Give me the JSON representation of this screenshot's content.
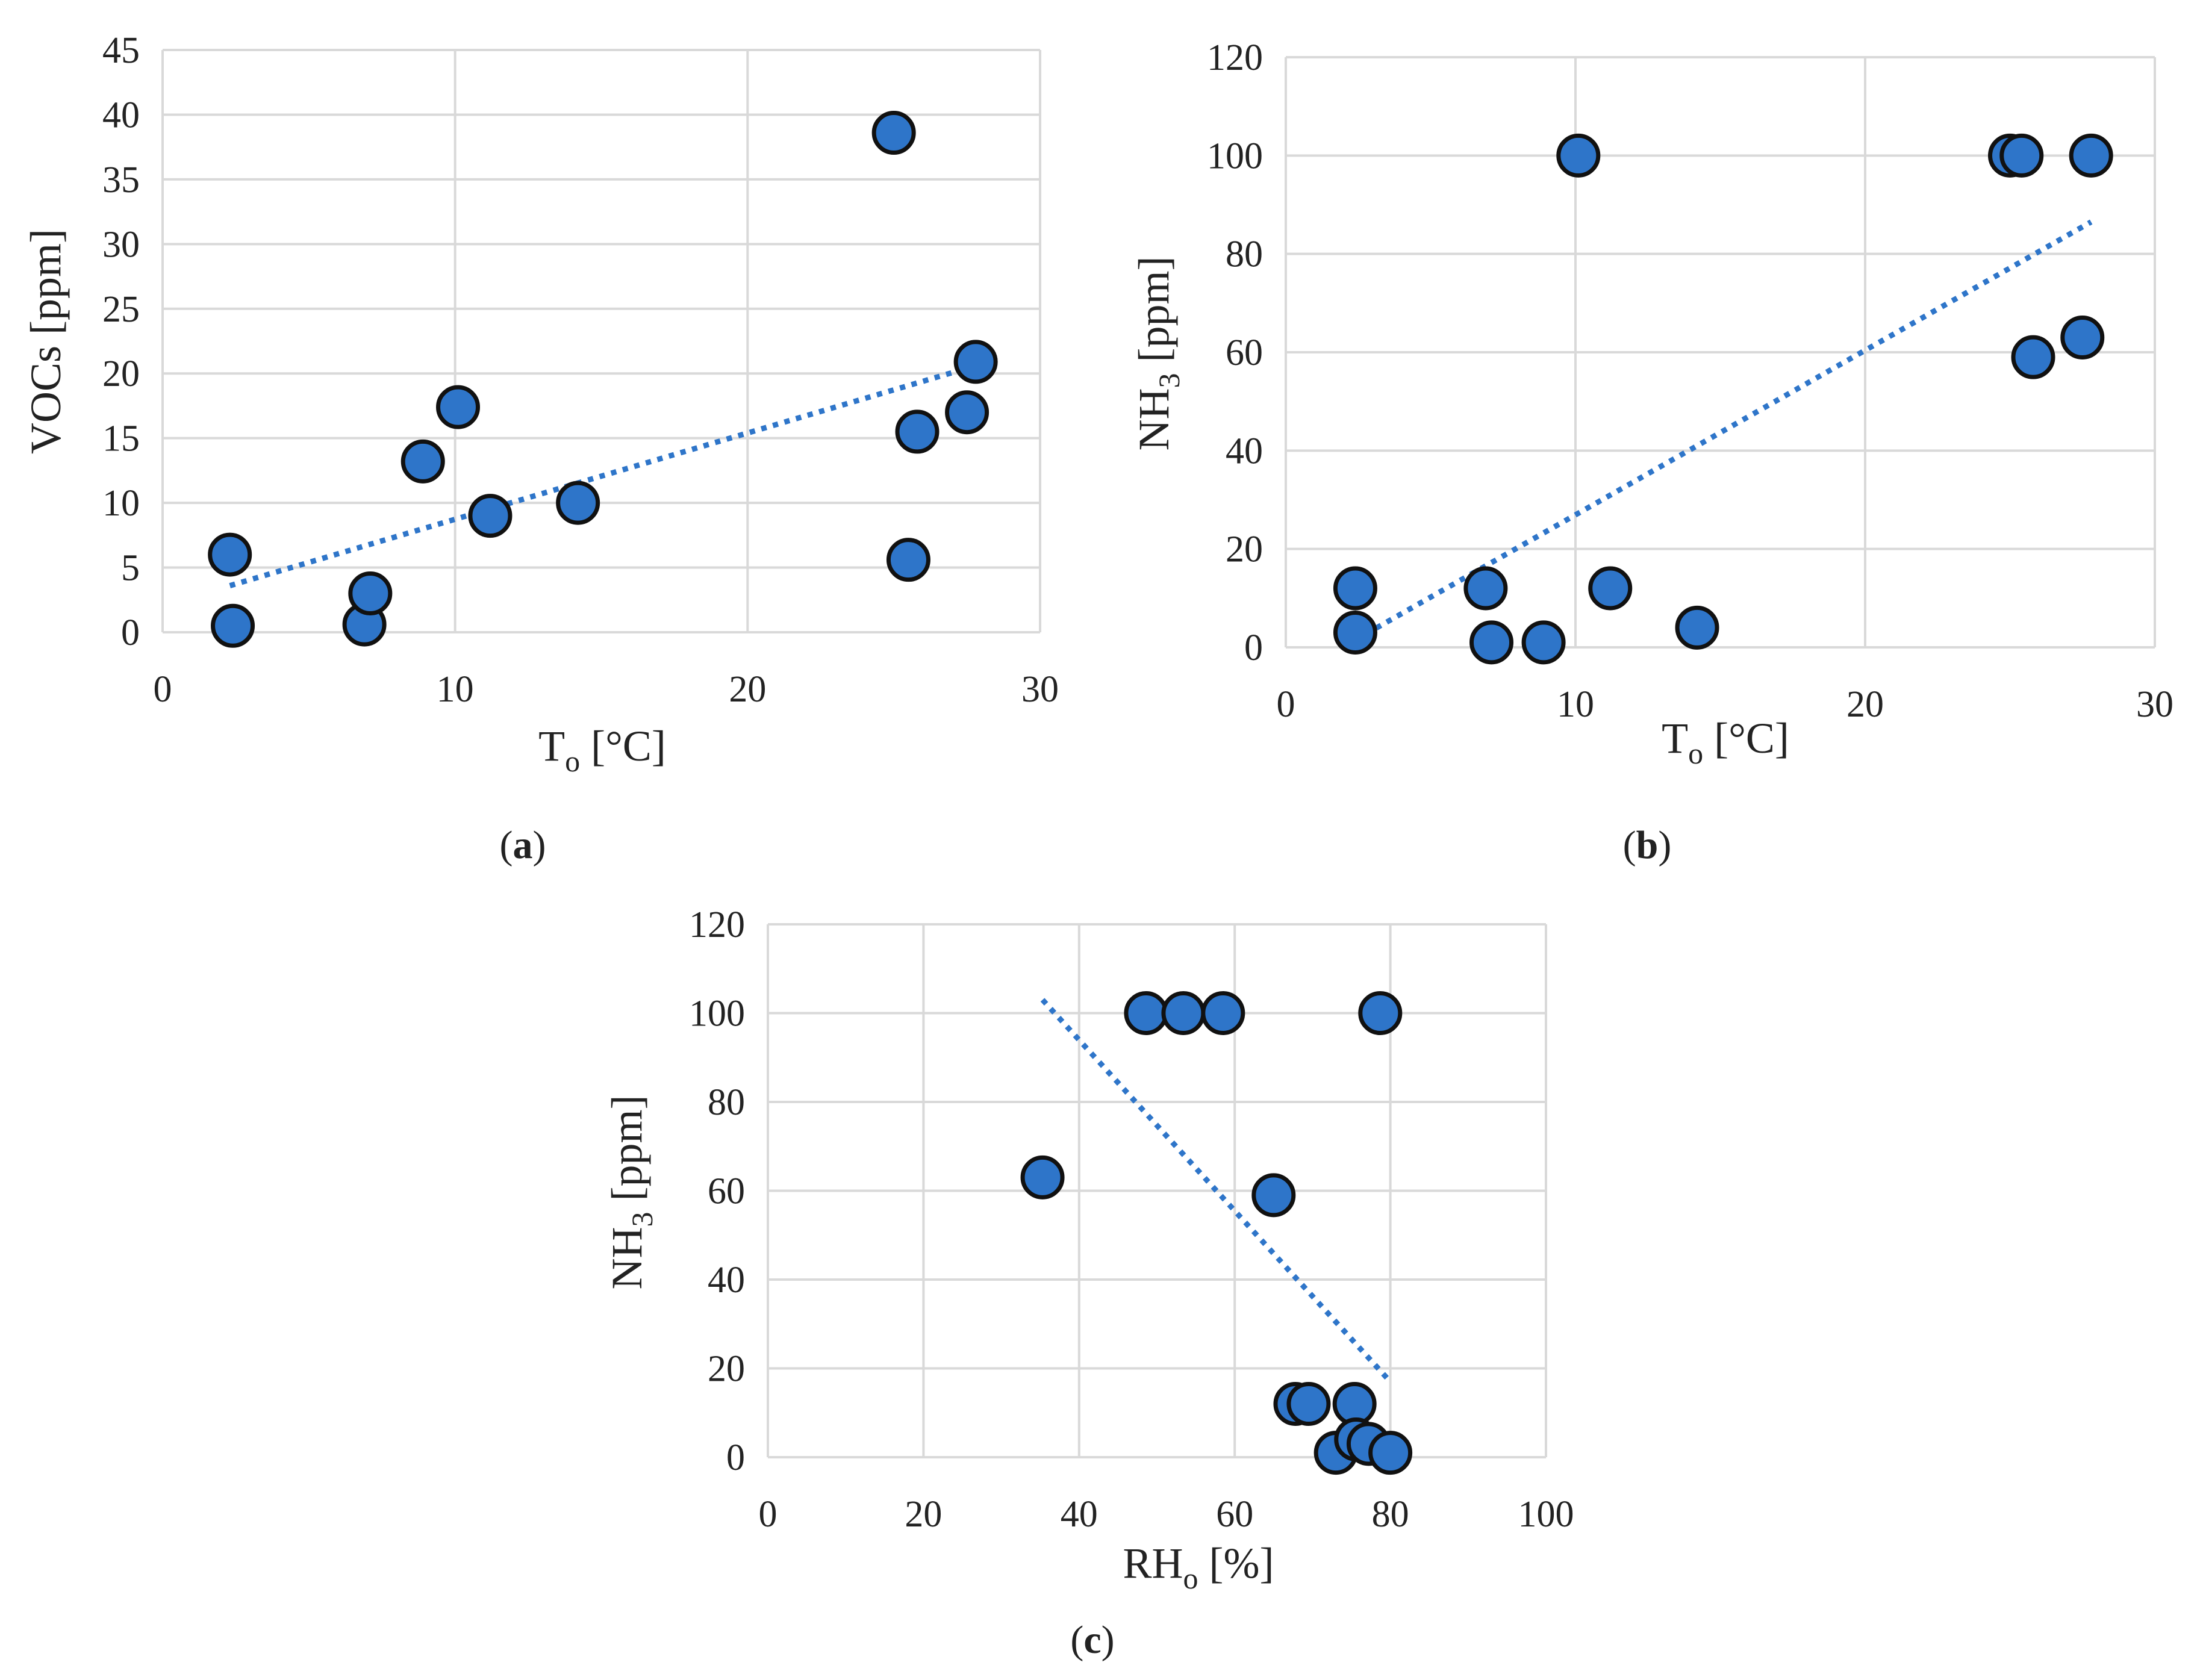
{
  "figure": {
    "colors": {
      "marker": "#2e75c9",
      "trend": "#2e75c9"
    }
  },
  "chart_data": [
    {
      "id": "a",
      "type": "scatter",
      "panel_label": "a",
      "xlabel": {
        "main": "T",
        "sub": "o",
        "rest": " [°C]"
      },
      "ylabel": {
        "main": "VOCs [ppm]",
        "sub": "",
        "rest": ""
      },
      "xlim": [
        0,
        30
      ],
      "ylim": [
        0,
        45
      ],
      "xticks": [
        0,
        10,
        20,
        30
      ],
      "yticks": [
        0,
        5,
        10,
        15,
        20,
        25,
        30,
        35,
        40,
        45
      ],
      "grid": true,
      "x": [
        2.3,
        2.4,
        6.9,
        7.1,
        8.9,
        10.1,
        11.2,
        14.2,
        25.0,
        25.5,
        25.8,
        27.5,
        27.8
      ],
      "y": [
        6.0,
        0.5,
        0.6,
        3.0,
        13.2,
        17.4,
        9.0,
        10.0,
        38.6,
        5.6,
        15.5,
        17.0,
        20.9
      ],
      "trendline": {
        "x": [
          2.3,
          27.8
        ],
        "y": [
          3.6,
          20.6
        ]
      }
    },
    {
      "id": "b",
      "type": "scatter",
      "panel_label": "b",
      "xlabel": {
        "main": "T",
        "sub": "o",
        "rest": " [°C]"
      },
      "ylabel": {
        "main": "NH",
        "sub": "3",
        "rest": " [ppm]"
      },
      "xlim": [
        0,
        30
      ],
      "ylim": [
        0,
        120
      ],
      "xticks": [
        0,
        10,
        20,
        30
      ],
      "yticks": [
        0,
        20,
        40,
        60,
        80,
        100,
        120
      ],
      "grid": true,
      "x": [
        2.4,
        2.4,
        6.9,
        7.1,
        8.9,
        10.1,
        11.2,
        14.2,
        25.0,
        25.4,
        25.8,
        27.5,
        27.8
      ],
      "y": [
        12,
        3,
        12,
        1,
        1,
        100,
        12,
        4,
        100,
        100,
        59,
        63,
        100
      ],
      "trendline": {
        "x": [
          2.4,
          27.8
        ],
        "y": [
          1.5,
          86.5
        ]
      }
    },
    {
      "id": "c",
      "type": "scatter",
      "panel_label": "c",
      "xlabel": {
        "main": "RH",
        "sub": "o",
        "rest": " [%]"
      },
      "ylabel": {
        "main": "NH",
        "sub": "3",
        "rest": " [ppm]"
      },
      "xlim": [
        0,
        100
      ],
      "ylim": [
        0,
        120
      ],
      "xticks": [
        0,
        20,
        40,
        60,
        80,
        100
      ],
      "yticks": [
        0,
        20,
        40,
        60,
        80,
        100,
        120
      ],
      "grid": true,
      "x": [
        35.3,
        48.6,
        53.4,
        58.5,
        65.0,
        67.8,
        69.5,
        73.0,
        75.4,
        75.6,
        77.2,
        78.7,
        80.0
      ],
      "y": [
        63,
        100,
        100,
        100,
        59,
        12,
        12,
        1,
        12,
        4,
        3,
        100,
        1
      ],
      "trendline": {
        "x": [
          35.3,
          80.0
        ],
        "y": [
          103,
          17
        ]
      }
    }
  ]
}
